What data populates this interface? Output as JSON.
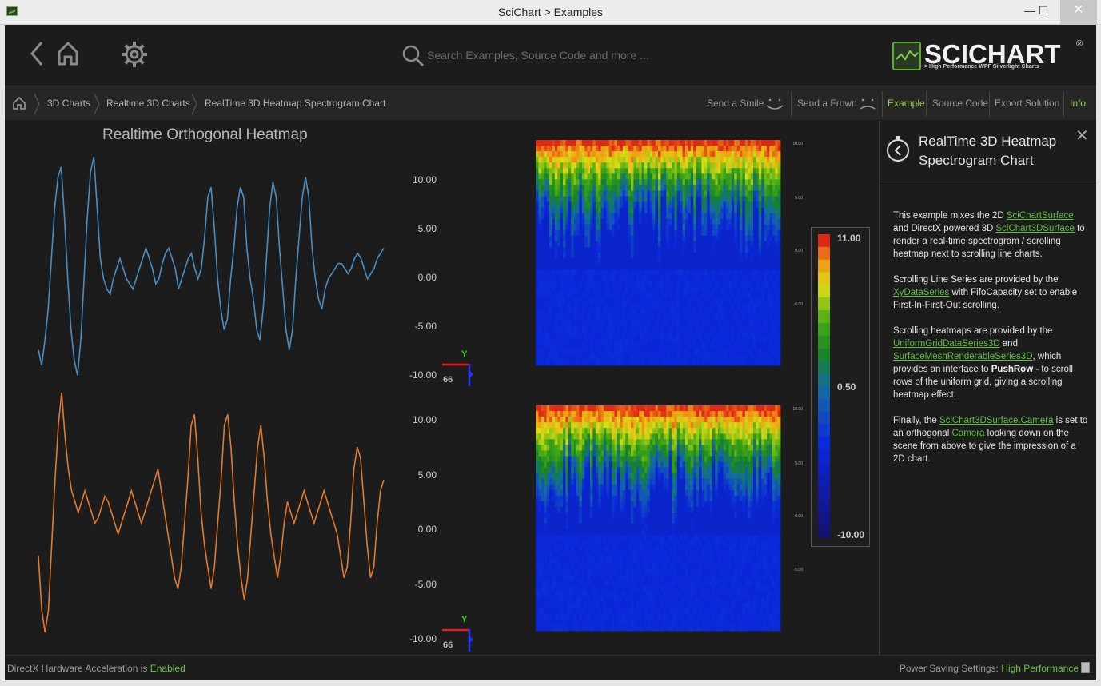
{
  "window": {
    "title": "SciChart > Examples"
  },
  "header": {
    "search_placeholder": "Search Examples, Source Code and more ...",
    "logo_text": "SCICHART",
    "logo_sub": "> High Performance WPF Silverlight Charts",
    "logo_reg": "®"
  },
  "breadcrumb": {
    "items": [
      "3D Charts",
      "Realtime 3D Charts",
      "RealTime 3D Heatmap Spectrogram Chart"
    ]
  },
  "actions": {
    "send_smile": "Send a Smile",
    "send_frown": "Send a Frown",
    "example": "Example",
    "source_code": "Source Code",
    "export_solution": "Export Solution",
    "info": "Info"
  },
  "main": {
    "chart_title": "Realtime Orthogonal Heatmap"
  },
  "chart_data": [
    {
      "type": "line",
      "series": [
        {
          "name": "",
          "color": "#4a8ec4"
        }
      ],
      "y_tick_labels": [
        "10.00",
        "5.00",
        "0.00",
        "-5.00",
        "-10.00"
      ],
      "ylim": [
        -10,
        12
      ],
      "points_y": [
        -7,
        -8.5,
        -6,
        -3,
        2,
        7,
        10,
        11,
        6,
        0,
        -5,
        -8,
        -9.5,
        -6,
        0,
        6,
        10.5,
        12,
        7,
        2,
        0,
        -1,
        -1.5,
        0,
        1,
        2,
        1,
        0,
        -0.5,
        -1,
        0,
        1,
        2,
        3,
        2,
        1,
        -0.5,
        0,
        1.5,
        2.5,
        3,
        2,
        1,
        -1,
        0,
        1,
        2,
        2.5,
        1,
        0,
        1,
        4,
        8,
        9,
        5,
        0,
        -3,
        -5,
        -4,
        0,
        3,
        7,
        9,
        8,
        3,
        0,
        -2,
        -5,
        -6,
        -3,
        2,
        7,
        9.5,
        8,
        3,
        -1,
        -5,
        -7,
        -5,
        0,
        4,
        8,
        10,
        8,
        3,
        0,
        -2,
        -3,
        -1,
        0,
        0.5,
        1,
        1.5,
        1.5,
        1,
        0.5,
        1,
        2,
        2.5,
        2,
        1,
        0,
        0.5,
        1,
        2,
        2.5,
        3
      ]
    },
    {
      "type": "line",
      "series": [
        {
          "name": "",
          "color": "#e07a2e"
        }
      ],
      "y_tick_labels": [
        "10.00",
        "5.00",
        "0.00",
        "-5.00",
        "-10.00"
      ],
      "ylim": [
        -10,
        12
      ],
      "points_y": [
        -3,
        -8,
        -10,
        -8,
        -2,
        4,
        9,
        12,
        8,
        5,
        3,
        2,
        1,
        2,
        3,
        2,
        1,
        0,
        0.5,
        1.5,
        2.5,
        2,
        1,
        0,
        -1,
        0,
        1,
        2,
        3,
        2,
        1,
        0,
        1,
        2,
        3,
        4,
        5,
        3,
        1,
        -1,
        -3,
        -5,
        -6,
        -4,
        0,
        4,
        9,
        10,
        6,
        1,
        -2,
        -4,
        -6,
        -4,
        0,
        4,
        9,
        10,
        7,
        2,
        -2,
        -5,
        -7,
        -5,
        -1,
        3,
        7,
        9,
        6,
        2,
        -1,
        -3,
        -5,
        -3,
        0,
        2,
        1,
        0,
        1,
        2,
        3,
        2,
        1,
        0,
        1,
        2,
        3,
        2,
        1,
        0,
        -1,
        -3,
        -5,
        -4,
        0,
        5,
        7,
        6,
        2,
        -2,
        -5,
        -4,
        0,
        3,
        4
      ]
    },
    {
      "type": "heatmap",
      "colorbar_ticks": [
        "11.00",
        "0.50",
        "-10.00"
      ],
      "zlim": [
        -10,
        11
      ]
    }
  ],
  "axes": {
    "axis_y_label": "Y",
    "axis_66": "66",
    "heat_ticks": [
      "10.00",
      "5.00",
      "0.00",
      "-5.00"
    ]
  },
  "info": {
    "title": "RealTime 3D Heatmap Spectrogram Chart",
    "p1_a": "This example mixes the 2D ",
    "p1_link1": "SciChartSurface",
    "p1_b": " and DirectX powered 3D ",
    "p1_link2": "SciChart3DSurface",
    "p1_c": " to render a real-time spectrogram / scrolling heatmap next to scrolling line charts.",
    "p2_a": "Scrolling Line Series are provided by the ",
    "p2_link": "XyDataSeries",
    "p2_b": " with FifoCapacity set to enable First-In-First-Out scrolling.",
    "p3_a": "Scrolling heatmaps are provided by the ",
    "p3_link1": "UniformGridDataSeries3D",
    "p3_b": " and ",
    "p3_link2": "SurfaceMeshRenderableSeries3D",
    "p3_c": ", which provides an interface to ",
    "p3_bold": "PushRow",
    "p3_d": " - to scroll rows of the uniform grid, giving a scrolling heatmap effect.",
    "p4_a": "Finally, the ",
    "p4_link1": "SciChart3DSurface.Camera",
    "p4_b": " is set to an orthogonal ",
    "p4_link2": "Camera",
    "p4_c": " looking down on the scene from above to give the impression of a 2D chart."
  },
  "status": {
    "left_prefix": "DirectX Hardware Acceleration is ",
    "left_value": "Enabled",
    "right_prefix": "Power Saving Settings: ",
    "right_value": "High Performance"
  }
}
